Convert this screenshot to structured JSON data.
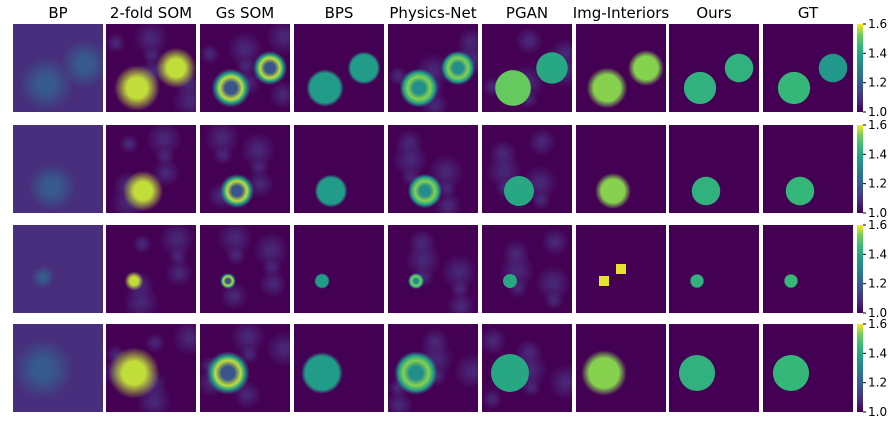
{
  "figure": {
    "columns": [
      "BP",
      "2-fold SOM",
      "Gs SOM",
      "BPS",
      "Physics-Net",
      "PGAN",
      "Img-Interiors",
      "Ours",
      "GT"
    ],
    "colorbar": {
      "colormap": "viridis",
      "ticks": [
        "1.0",
        "1.2",
        "1.4",
        "1.6"
      ],
      "range": [
        1.0,
        1.6
      ]
    },
    "colors": {
      "background": "#440154",
      "low": "#440154",
      "mid": "#21918c",
      "high": "#fde725"
    },
    "rows": 4
  }
}
